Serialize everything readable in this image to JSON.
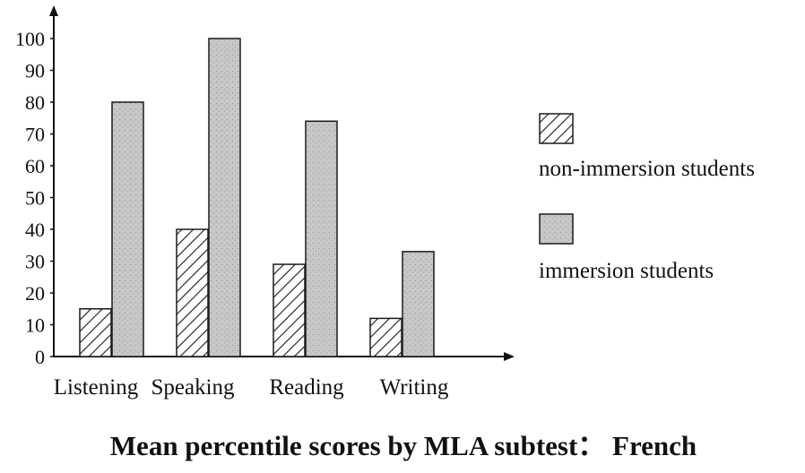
{
  "chart_data": {
    "type": "bar",
    "title": "Mean percentile scores by MLA subtest： French",
    "categories": [
      "Listening",
      "Speaking",
      "Reading",
      "Writing"
    ],
    "series": [
      {
        "name": "non-immersion students",
        "values": [
          15,
          40,
          29,
          12
        ],
        "pattern": "hatched"
      },
      {
        "name": "immersion students",
        "values": [
          80,
          100,
          74,
          33
        ],
        "pattern": "gray"
      }
    ],
    "yticks": [
      0,
      10,
      20,
      30,
      40,
      50,
      60,
      70,
      80,
      90,
      100
    ],
    "ylim": [
      0,
      100
    ],
    "xlabel": "",
    "ylabel": "",
    "grid": false,
    "legend_position": "right",
    "colors": {
      "axis": "#111111",
      "hatch_fill": "#ffffff",
      "gray_fill": "#c8c8c8",
      "stroke": "#1a1a1a"
    }
  }
}
